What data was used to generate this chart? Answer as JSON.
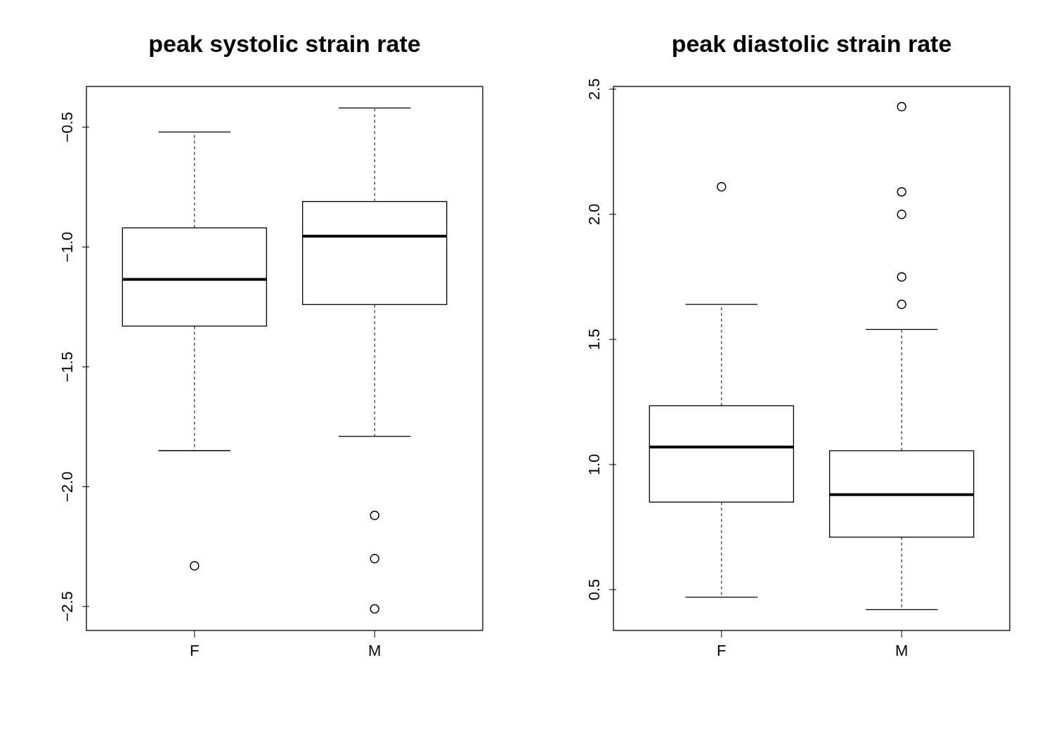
{
  "chart_data": [
    {
      "type": "box",
      "title": "peak systolic strain rate",
      "categories": [
        "F",
        "M"
      ],
      "boxes": [
        {
          "low": -1.85,
          "q1": -1.33,
          "median": -1.135,
          "q3": -0.92,
          "high": -0.52,
          "outliers": [
            -2.33
          ]
        },
        {
          "low": -1.79,
          "q1": -1.24,
          "median": -0.955,
          "q3": -0.81,
          "high": -0.42,
          "outliers": [
            -2.12,
            -2.3,
            -2.51
          ]
        }
      ],
      "ylim": [
        -2.6,
        -0.33
      ],
      "yticks": [
        {
          "value": -2.5,
          "label": "−2.5"
        },
        {
          "value": -2.0,
          "label": "−2.0"
        },
        {
          "value": -1.5,
          "label": "−1.5"
        },
        {
          "value": -1.0,
          "label": "−1.0"
        },
        {
          "value": -0.5,
          "label": "−0.5"
        }
      ]
    },
    {
      "type": "box",
      "title": "peak diastolic strain rate",
      "categories": [
        "F",
        "M"
      ],
      "boxes": [
        {
          "low": 0.47,
          "q1": 0.85,
          "median": 1.07,
          "q3": 1.235,
          "high": 1.64,
          "outliers": [
            2.11
          ]
        },
        {
          "low": 0.42,
          "q1": 0.71,
          "median": 0.88,
          "q3": 1.055,
          "high": 1.54,
          "outliers": [
            2.43,
            2.09,
            2.0,
            1.75,
            1.64
          ]
        }
      ],
      "ylim": [
        0.337,
        2.511
      ],
      "yticks": [
        {
          "value": 0.5,
          "label": "0.5"
        },
        {
          "value": 1.0,
          "label": "1.0"
        },
        {
          "value": 1.5,
          "label": "1.5"
        },
        {
          "value": 2.0,
          "label": "2.0"
        },
        {
          "value": 2.5,
          "label": "2.5"
        }
      ]
    }
  ]
}
